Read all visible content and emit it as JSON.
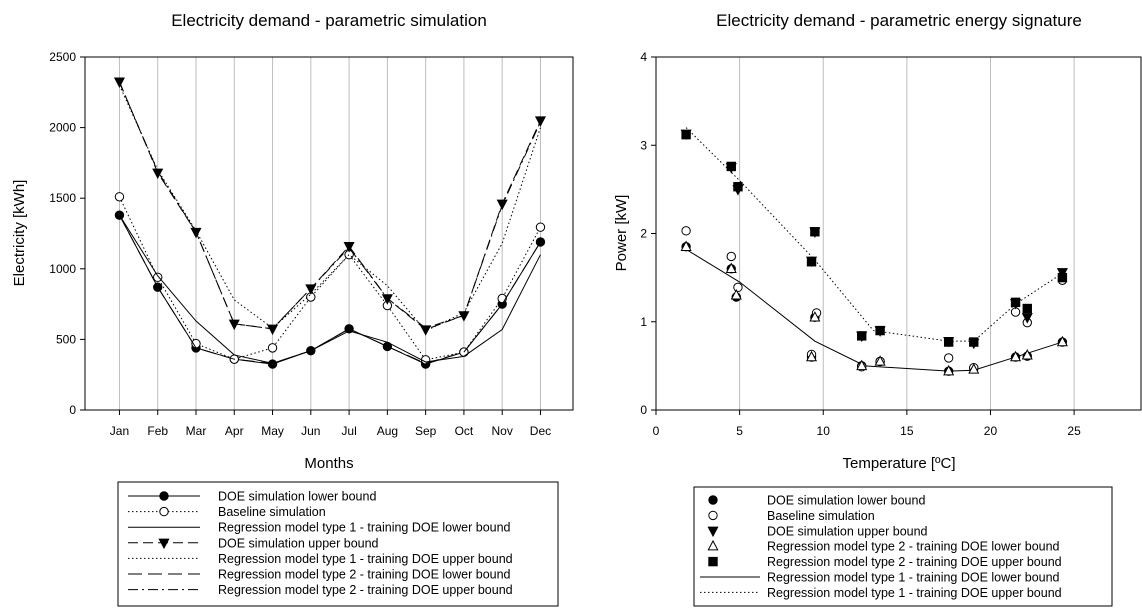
{
  "chart_data": [
    {
      "type": "line",
      "title": "Electricity demand - parametric simulation",
      "xlabel": "Months",
      "ylabel": "Electricity [kWh]",
      "categories": [
        "Jan",
        "Feb",
        "Mar",
        "Apr",
        "May",
        "Jun",
        "Jul",
        "Aug",
        "Sep",
        "Oct",
        "Nov",
        "Dec"
      ],
      "ylim": [
        0,
        2500
      ],
      "yticks": [
        0,
        500,
        1000,
        1500,
        2000,
        2500
      ],
      "grid": "vertical",
      "legend_position": "below",
      "series": [
        {
          "name": "DOE simulation lower bound",
          "style": "solid",
          "marker": "filled-circle",
          "values": [
            1380,
            870,
            440,
            360,
            325,
            420,
            575,
            450,
            325,
            410,
            750,
            1190
          ]
        },
        {
          "name": "Baseline simulation",
          "style": "dotted",
          "marker": "open-circle",
          "values": [
            1510,
            940,
            470,
            360,
            440,
            800,
            1100,
            740,
            355,
            410,
            790,
            1295
          ]
        },
        {
          "name": "Regression model type 1 - training DOE lower bound",
          "style": "solid",
          "marker": "none",
          "values": [
            1380,
            950,
            630,
            390,
            330,
            420,
            560,
            480,
            340,
            380,
            570,
            1100
          ]
        },
        {
          "name": "DOE simulation upper bound",
          "style": "dashed",
          "marker": "filled-triangle-down",
          "values": [
            2325,
            1680,
            1260,
            610,
            575,
            860,
            1160,
            790,
            570,
            670,
            1460,
            2050
          ]
        },
        {
          "name": "Regression model type 1 - training DOE upper bound",
          "style": "dotted",
          "marker": "none",
          "values": [
            2300,
            1700,
            1270,
            780,
            580,
            820,
            1100,
            880,
            560,
            690,
            1180,
            2000
          ]
        },
        {
          "name": "Regression model type 2 - training DOE lower bound",
          "style": "longdash",
          "marker": "none",
          "values": [
            1380,
            870,
            440,
            360,
            330,
            420,
            575,
            450,
            330,
            410,
            750,
            1190
          ]
        },
        {
          "name": "Regression model type 2 - training DOE upper bound",
          "style": "dashdot",
          "marker": "none",
          "values": [
            2320,
            1690,
            1260,
            610,
            575,
            860,
            1150,
            790,
            580,
            670,
            1450,
            2040
          ]
        }
      ]
    },
    {
      "type": "scatter",
      "title": "Electricity demand - parametric energy signature",
      "xlabel": "Temperature [ºC]",
      "ylabel": "Power [kW]",
      "xlim": [
        0,
        29
      ],
      "ylim": [
        0,
        4
      ],
      "xticks": [
        0,
        5,
        10,
        15,
        20,
        25
      ],
      "yticks": [
        0,
        1,
        2,
        3,
        4
      ],
      "grid": "vertical",
      "legend_position": "below",
      "series": [
        {
          "name": "DOE simulation lower bound",
          "marker": "filled-circle",
          "points": [
            [
              1.8,
              1.85
            ],
            [
              4.5,
              1.6
            ],
            [
              4.8,
              1.28
            ],
            [
              9.3,
              0.6
            ],
            [
              9.5,
              1.05
            ],
            [
              12.3,
              0.5
            ],
            [
              13.4,
              0.55
            ],
            [
              17.5,
              0.44
            ],
            [
              19,
              0.47
            ],
            [
              21.5,
              0.6
            ],
            [
              22.2,
              0.61
            ],
            [
              24.3,
              0.77
            ]
          ]
        },
        {
          "name": "Baseline simulation",
          "marker": "open-circle",
          "points": [
            [
              1.8,
              2.03
            ],
            [
              4.5,
              1.74
            ],
            [
              4.9,
              1.39
            ],
            [
              9.3,
              0.63
            ],
            [
              9.6,
              1.1
            ],
            [
              12.3,
              0.49
            ],
            [
              13.4,
              0.55
            ],
            [
              17.5,
              0.59
            ],
            [
              19,
              0.48
            ],
            [
              21.5,
              1.11
            ],
            [
              22.2,
              0.99
            ],
            [
              24.3,
              1.47
            ]
          ]
        },
        {
          "name": "DOE simulation upper bound",
          "marker": "filled-triangle-down",
          "points": [
            [
              1.8,
              3.13
            ],
            [
              4.5,
              2.75
            ],
            [
              4.9,
              2.5
            ],
            [
              9.3,
              1.69
            ],
            [
              9.5,
              2.02
            ],
            [
              12.3,
              0.84
            ],
            [
              13.4,
              0.9
            ],
            [
              17.5,
              0.78
            ],
            [
              19,
              0.76
            ],
            [
              21.5,
              1.21
            ],
            [
              22.2,
              1.05
            ],
            [
              24.3,
              1.56
            ]
          ]
        },
        {
          "name": "Regression model type 2  - training DOE lower bound",
          "marker": "open-triangle-up",
          "points": [
            [
              1.8,
              1.85
            ],
            [
              4.5,
              1.6
            ],
            [
              4.8,
              1.3
            ],
            [
              9.3,
              0.6
            ],
            [
              9.5,
              1.05
            ],
            [
              12.3,
              0.5
            ],
            [
              13.4,
              0.55
            ],
            [
              17.5,
              0.44
            ],
            [
              19,
              0.46
            ],
            [
              21.5,
              0.6
            ],
            [
              22.2,
              0.62
            ],
            [
              24.3,
              0.77
            ]
          ]
        },
        {
          "name": "Regression model type 2  - training DOE upper bound",
          "marker": "filled-square",
          "points": [
            [
              1.8,
              3.12
            ],
            [
              4.5,
              2.76
            ],
            [
              4.9,
              2.53
            ],
            [
              9.3,
              1.68
            ],
            [
              9.5,
              2.02
            ],
            [
              12.3,
              0.84
            ],
            [
              13.4,
              0.9
            ],
            [
              17.5,
              0.77
            ],
            [
              19,
              0.77
            ],
            [
              21.5,
              1.22
            ],
            [
              22.2,
              1.15
            ],
            [
              24.3,
              1.5
            ]
          ]
        },
        {
          "name": "Regression model type 1  - training DOE lower bound",
          "style": "solid",
          "marker": "none",
          "points": [
            [
              1.8,
              1.82
            ],
            [
              5,
              1.45
            ],
            [
              9.5,
              0.78
            ],
            [
              12.5,
              0.5
            ],
            [
              17.5,
              0.44
            ],
            [
              19,
              0.45
            ],
            [
              21.5,
              0.6
            ],
            [
              24.3,
              0.77
            ]
          ]
        },
        {
          "name": "Regression model type 1  - training DOE upper bound",
          "style": "dotted",
          "marker": "none",
          "points": [
            [
              1.8,
              3.2
            ],
            [
              5,
              2.6
            ],
            [
              9.5,
              1.7
            ],
            [
              13,
              0.9
            ],
            [
              17.5,
              0.78
            ],
            [
              19,
              0.78
            ],
            [
              21.5,
              1.2
            ],
            [
              24.3,
              1.55
            ]
          ]
        }
      ]
    }
  ]
}
